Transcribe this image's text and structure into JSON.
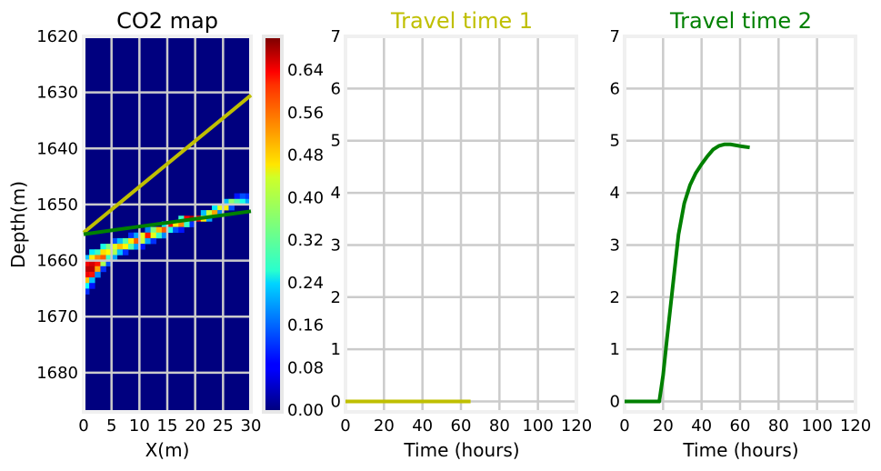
{
  "chart_data": [
    {
      "type": "heatmap",
      "title": "CO2 map",
      "xlabel": "X(m)",
      "ylabel": "Depth(m)",
      "xlim": [
        0,
        30
      ],
      "ylim": [
        1687,
        1620
      ],
      "xticks": [
        "0",
        "5",
        "10",
        "15",
        "20",
        "25",
        "30"
      ],
      "yticks": [
        "1620",
        "1630",
        "1640",
        "1650",
        "1660",
        "1670",
        "1680"
      ],
      "grid": true,
      "colorbar": {
        "min": 0,
        "max": 0.7,
        "ticks": [
          "0.00",
          "0.08",
          "0.16",
          "0.24",
          "0.32",
          "0.40",
          "0.48",
          "0.56",
          "0.64"
        ],
        "colormap": "jet"
      },
      "lines": [
        {
          "color": "#bfbf00",
          "x": [
            0,
            30
          ],
          "y": [
            1655,
            1630.5
          ]
        },
        {
          "color": "#008000",
          "x": [
            0,
            30
          ],
          "y": [
            1655.3,
            1651.2
          ]
        }
      ],
      "cells": [
        [
          0,
          1659,
          0.22
        ],
        [
          0,
          1660,
          0.62
        ],
        [
          0,
          1661,
          0.66
        ],
        [
          0,
          1662,
          0.62
        ],
        [
          0,
          1663,
          0.48
        ],
        [
          0,
          1664,
          0.26
        ],
        [
          0,
          1665,
          0.12
        ],
        [
          1,
          1658,
          0.25
        ],
        [
          1,
          1659,
          0.45
        ],
        [
          1,
          1660,
          0.64
        ],
        [
          1,
          1661,
          0.66
        ],
        [
          1,
          1662,
          0.6
        ],
        [
          1,
          1663,
          0.22
        ],
        [
          1,
          1664,
          0.1
        ],
        [
          2,
          1658,
          0.3
        ],
        [
          2,
          1659,
          0.52
        ],
        [
          2,
          1660,
          0.6
        ],
        [
          2,
          1661,
          0.5
        ],
        [
          2,
          1662,
          0.18
        ],
        [
          3,
          1657,
          0.28
        ],
        [
          3,
          1658,
          0.46
        ],
        [
          3,
          1659,
          0.55
        ],
        [
          3,
          1660,
          0.38
        ],
        [
          3,
          1661,
          0.12
        ],
        [
          4,
          1657,
          0.35
        ],
        [
          4,
          1658,
          0.44
        ],
        [
          4,
          1659,
          0.3
        ],
        [
          4,
          1660,
          0.14
        ],
        [
          5,
          1656,
          0.14
        ],
        [
          5,
          1657,
          0.42
        ],
        [
          5,
          1658,
          0.38
        ],
        [
          5,
          1659,
          0.2
        ],
        [
          6,
          1656,
          0.22
        ],
        [
          6,
          1657,
          0.48
        ],
        [
          6,
          1658,
          0.22
        ],
        [
          7,
          1656,
          0.32
        ],
        [
          7,
          1657,
          0.44
        ],
        [
          7,
          1658,
          0.12
        ],
        [
          8,
          1655,
          0.12
        ],
        [
          8,
          1656,
          0.45
        ],
        [
          8,
          1657,
          0.32
        ],
        [
          9,
          1655,
          0.2
        ],
        [
          9,
          1656,
          0.55
        ],
        [
          9,
          1657,
          0.2
        ],
        [
          10,
          1655,
          0.42
        ],
        [
          10,
          1656,
          0.4
        ],
        [
          10,
          1657,
          0.1
        ],
        [
          11,
          1654,
          0.18
        ],
        [
          11,
          1655,
          0.6
        ],
        [
          11,
          1656,
          0.2
        ],
        [
          12,
          1654,
          0.35
        ],
        [
          12,
          1655,
          0.42
        ],
        [
          12,
          1656,
          0.12
        ],
        [
          13,
          1654,
          0.48
        ],
        [
          13,
          1655,
          0.3
        ],
        [
          14,
          1653,
          0.25
        ],
        [
          14,
          1654,
          0.55
        ],
        [
          14,
          1655,
          0.18
        ],
        [
          15,
          1653,
          0.6
        ],
        [
          15,
          1654,
          0.28
        ],
        [
          16,
          1653,
          0.45
        ],
        [
          16,
          1654,
          0.14
        ],
        [
          17,
          1652,
          0.3
        ],
        [
          17,
          1653,
          0.52
        ],
        [
          17,
          1654,
          0.1
        ],
        [
          18,
          1652,
          0.62
        ],
        [
          18,
          1653,
          0.3
        ],
        [
          19,
          1652,
          0.66
        ],
        [
          19,
          1653,
          0.12
        ],
        [
          20,
          1652,
          0.6
        ],
        [
          21,
          1651,
          0.22
        ],
        [
          21,
          1652,
          0.45
        ],
        [
          22,
          1651,
          0.4
        ],
        [
          22,
          1652,
          0.2
        ],
        [
          23,
          1650,
          0.25
        ],
        [
          23,
          1651,
          0.5
        ],
        [
          24,
          1650,
          0.42
        ],
        [
          24,
          1651,
          0.18
        ],
        [
          25,
          1649,
          0.22
        ],
        [
          25,
          1650,
          0.45
        ],
        [
          26,
          1649,
          0.36
        ],
        [
          26,
          1650,
          0.14
        ],
        [
          27,
          1648,
          0.1
        ],
        [
          27,
          1649,
          0.32
        ],
        [
          28,
          1648,
          0.14
        ],
        [
          28,
          1649,
          0.28
        ],
        [
          29,
          1648,
          0.12
        ],
        [
          29,
          1649,
          0.2
        ]
      ]
    },
    {
      "type": "line",
      "title": "Travel time 1",
      "title_color": "#bfbf00",
      "xlabel": "Time (hours)",
      "ylabel": "",
      "xlim": [
        0,
        120
      ],
      "ylim": [
        -0.2,
        7
      ],
      "xticks": [
        "0",
        "20",
        "40",
        "60",
        "80",
        "100",
        "120"
      ],
      "yticks": [
        "0",
        "1",
        "2",
        "3",
        "4",
        "5",
        "6",
        "7"
      ],
      "grid": true,
      "series": [
        {
          "color": "#bfbf00",
          "x": [
            0,
            10,
            20,
            30,
            40,
            50,
            60,
            65
          ],
          "y": [
            0,
            0,
            0,
            0,
            0,
            0,
            0,
            0
          ]
        }
      ]
    },
    {
      "type": "line",
      "title": "Travel time 2",
      "title_color": "#008000",
      "xlabel": "Time (hours)",
      "ylabel": "",
      "xlim": [
        0,
        120
      ],
      "ylim": [
        -0.2,
        7
      ],
      "xticks": [
        "0",
        "20",
        "40",
        "60",
        "80",
        "100",
        "120"
      ],
      "yticks": [
        "0",
        "1",
        "2",
        "3",
        "4",
        "5",
        "6",
        "7"
      ],
      "grid": true,
      "series": [
        {
          "color": "#008000",
          "x": [
            0,
            10,
            18,
            20,
            22,
            25,
            28,
            31,
            34,
            37,
            40,
            43,
            46,
            49,
            52,
            55,
            58,
            61,
            65
          ],
          "y": [
            0,
            0,
            0,
            0.5,
            1.2,
            2.2,
            3.2,
            3.8,
            4.15,
            4.38,
            4.55,
            4.7,
            4.83,
            4.9,
            4.93,
            4.93,
            4.91,
            4.89,
            4.87
          ]
        }
      ]
    }
  ]
}
